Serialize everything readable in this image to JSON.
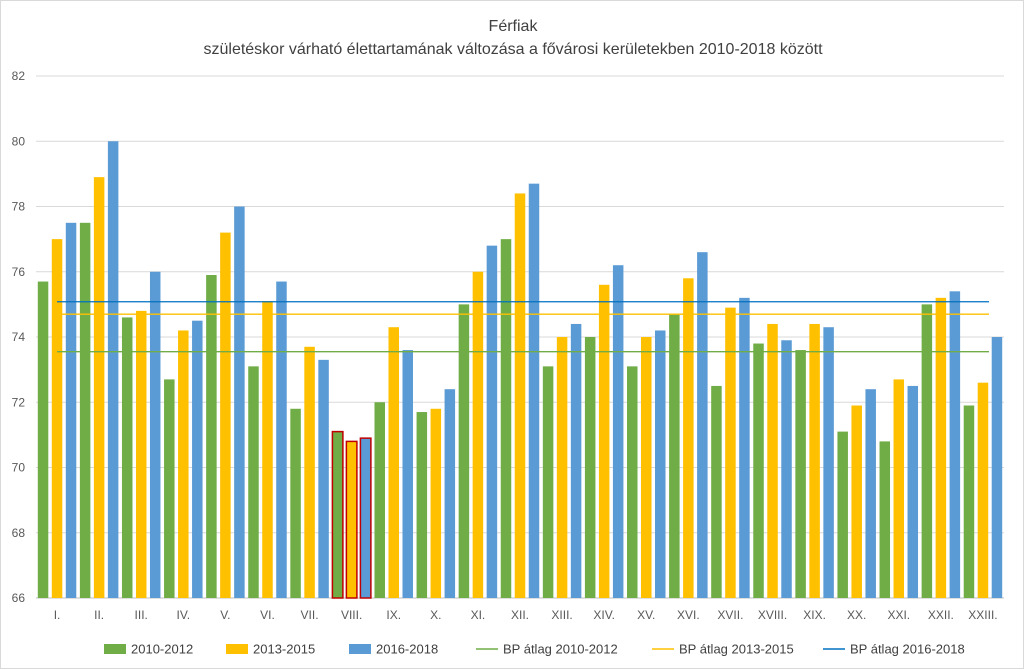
{
  "chart_data": {
    "type": "bar",
    "title": "Férfiak",
    "subtitle": "születéskor várható élettartamának változása a fővárosi kerületekben 2010-2018 között",
    "xlabel": "",
    "ylabel": "",
    "ylim": [
      66,
      82
    ],
    "yticks": [
      "66",
      "68",
      "70",
      "72",
      "74",
      "76",
      "78",
      "80",
      "82"
    ],
    "grid": true,
    "legend_position": "bottom",
    "categories": [
      "I.",
      "II.",
      "III.",
      "IV.",
      "V.",
      "VI.",
      "VII.",
      "VIII.",
      "IX.",
      "X.",
      "XI.",
      "XII.",
      "XIII.",
      "XIV.",
      "XV.",
      "XVI.",
      "XVII.",
      "XVIII.",
      "XIX.",
      "XX.",
      "XXI.",
      "XXII.",
      "XXIII."
    ],
    "series": [
      {
        "name": "2010-2012",
        "color": "#70ad47",
        "values": [
          75.7,
          77.5,
          74.6,
          72.7,
          75.9,
          73.1,
          71.8,
          71.1,
          72.0,
          71.7,
          75.0,
          77.0,
          73.1,
          74.0,
          73.1,
          74.7,
          72.5,
          73.8,
          73.6,
          71.1,
          70.8,
          75.0,
          71.9
        ]
      },
      {
        "name": "2013-2015",
        "color": "#ffc000",
        "values": [
          77.0,
          78.9,
          74.8,
          74.2,
          77.2,
          75.1,
          73.7,
          70.8,
          74.3,
          71.8,
          76.0,
          78.4,
          74.0,
          75.6,
          74.0,
          75.8,
          74.9,
          74.4,
          74.4,
          71.9,
          72.7,
          75.2,
          72.6
        ]
      },
      {
        "name": "2016-2018",
        "color": "#5b9bd5",
        "values": [
          77.5,
          80.0,
          76.0,
          74.5,
          78.0,
          75.7,
          73.3,
          70.9,
          73.6,
          72.4,
          76.8,
          78.7,
          74.4,
          76.2,
          74.2,
          76.6,
          75.2,
          73.9,
          74.3,
          72.4,
          72.5,
          75.4,
          74.0
        ]
      }
    ],
    "highlight_category": "VIII.",
    "highlight_outline_color": "#c00000",
    "reference_lines": [
      {
        "name": "BP átlag 2010-2012",
        "value": 73.55,
        "color": "#70ad47"
      },
      {
        "name": "BP átlag 2013-2015",
        "value": 74.7,
        "color": "#ffc000"
      },
      {
        "name": "BP átlag 2016-2018",
        "value": 75.08,
        "color": "#0070c0"
      }
    ]
  }
}
